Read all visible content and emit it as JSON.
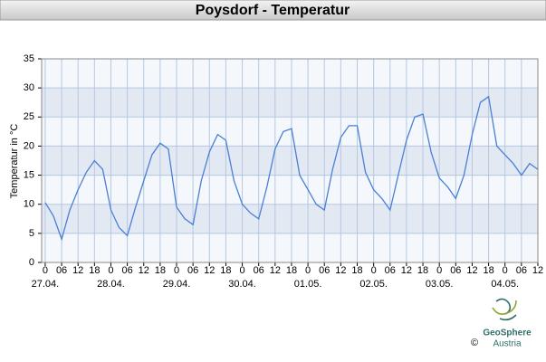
{
  "chart_data": {
    "type": "line",
    "title": "Poysdorf - Temperatur",
    "ylabel": "Temperatur in °C",
    "x": [
      0,
      3,
      6,
      9,
      12,
      15,
      18,
      21,
      24,
      27,
      30,
      33,
      36,
      39,
      42,
      45,
      48,
      51,
      54,
      57,
      60,
      63,
      66,
      69,
      72,
      75,
      78,
      81,
      84,
      87,
      90,
      93,
      96,
      99,
      102,
      105,
      108,
      111,
      114,
      117,
      120,
      123,
      126,
      129,
      132,
      135,
      138,
      141,
      144,
      147,
      150,
      153,
      156,
      159,
      162,
      165,
      168,
      171,
      174,
      177,
      180
    ],
    "values": [
      10.3,
      8,
      4,
      9,
      12.5,
      15.5,
      17.5,
      16,
      9,
      6,
      4.6,
      9.5,
      14,
      18.5,
      20.5,
      19.5,
      9.5,
      7.5,
      6.5,
      14,
      19,
      22,
      21,
      14,
      10,
      8.5,
      7.5,
      13,
      19.5,
      22.5,
      23,
      15,
      12.5,
      10,
      9,
      16,
      21.5,
      23.5,
      23.5,
      15.5,
      12.5,
      11,
      9,
      15,
      21,
      25,
      25.5,
      19,
      14.5,
      13,
      11,
      15,
      22,
      27.5,
      28.5,
      20,
      18.5,
      17,
      15,
      17,
      16
    ],
    "color": "#4a7fd6",
    "xlim": [
      -1.3,
      180
    ],
    "ylim": [
      0,
      35
    ],
    "yticks": [
      0,
      5,
      10,
      15,
      20,
      25,
      30,
      35
    ],
    "xticks": [
      0,
      {
        "value": 6,
        "label": "06"
      },
      12,
      18,
      {
        "value": 24,
        "label": "0"
      },
      {
        "value": 30,
        "label": "06"
      },
      {
        "value": 36,
        "label": "12"
      },
      {
        "value": 42,
        "label": "18"
      },
      {
        "value": 48,
        "label": "0"
      },
      {
        "value": 54,
        "label": "06"
      },
      {
        "value": 60,
        "label": "12"
      },
      {
        "value": 66,
        "label": "18"
      },
      {
        "value": 72,
        "label": "0"
      },
      {
        "value": 78,
        "label": "06"
      },
      {
        "value": 84,
        "label": "12"
      },
      {
        "value": 90,
        "label": "18"
      },
      {
        "value": 96,
        "label": "0"
      },
      {
        "value": 102,
        "label": "06"
      },
      {
        "value": 108,
        "label": "12"
      },
      {
        "value": 114,
        "label": "18"
      },
      {
        "value": 120,
        "label": "0"
      },
      {
        "value": 126,
        "label": "06"
      },
      {
        "value": 132,
        "label": "12"
      },
      {
        "value": 138,
        "label": "18"
      },
      {
        "value": 144,
        "label": "0"
      },
      {
        "value": 150,
        "label": "06"
      },
      {
        "value": 156,
        "label": "12"
      },
      {
        "value": 162,
        "label": "18"
      },
      {
        "value": 168,
        "label": "0"
      },
      {
        "value": 174,
        "label": "06"
      },
      {
        "value": 180,
        "label": "12"
      }
    ],
    "day_labels": [
      {
        "value": 0,
        "label": "27.04."
      },
      {
        "value": 24,
        "label": "28.04."
      },
      {
        "value": 48,
        "label": "29.04."
      },
      {
        "value": 72,
        "label": "30.04."
      },
      {
        "value": 96,
        "label": "01.05."
      },
      {
        "value": 120,
        "label": "02.05."
      },
      {
        "value": 144,
        "label": "03.05."
      },
      {
        "value": 168,
        "label": "04.05."
      }
    ],
    "grid": true
  },
  "logo": {
    "name": "GeoSphere",
    "sub": "Austria",
    "copyright": "©"
  }
}
